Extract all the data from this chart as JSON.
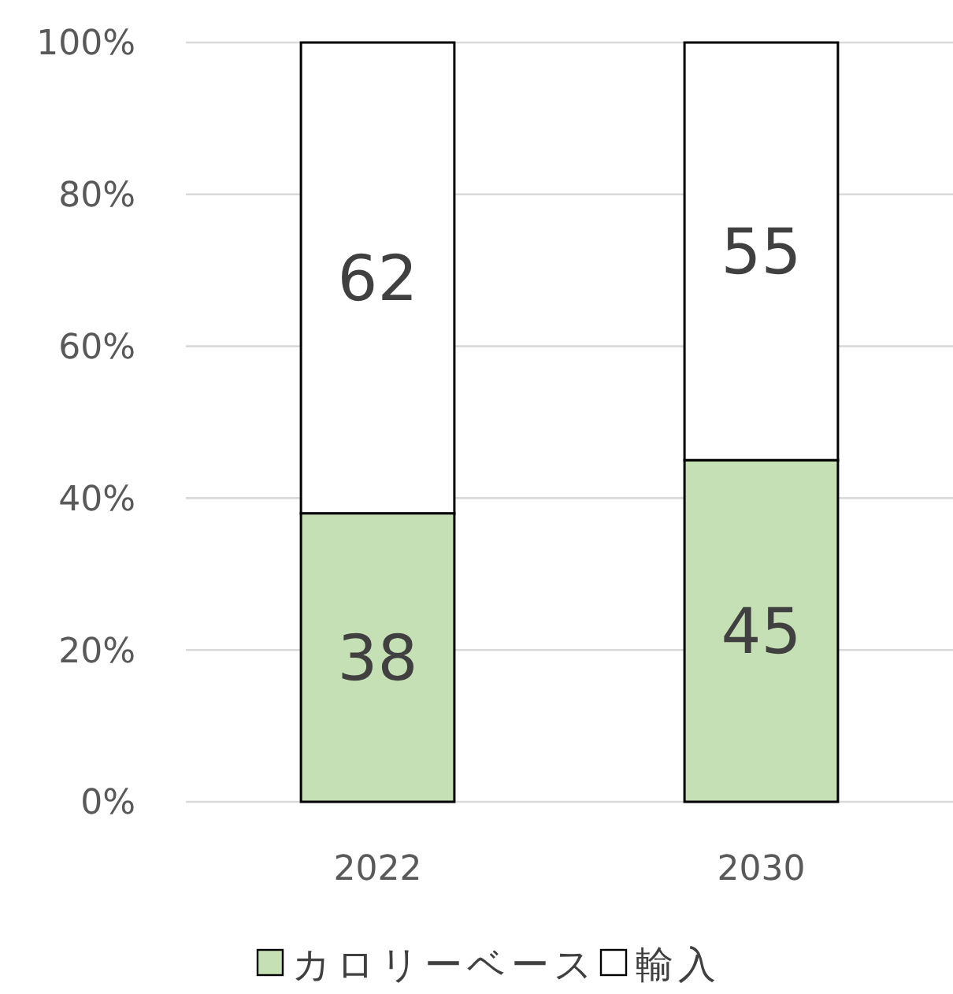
{
  "chart_data": {
    "type": "bar",
    "stacked": true,
    "categories": [
      "2022",
      "2030"
    ],
    "series": [
      {
        "name": "カロリーベース",
        "color": "#c5e0b4",
        "values": [
          38,
          45
        ]
      },
      {
        "name": "輸入",
        "color": "#ffffff",
        "values": [
          62,
          55
        ]
      }
    ],
    "ylim": [
      0,
      100
    ],
    "yticks": [
      {
        "value": 0,
        "label": "0%"
      },
      {
        "value": 20,
        "label": "20%"
      },
      {
        "value": 40,
        "label": "40%"
      },
      {
        "value": 60,
        "label": "60%"
      },
      {
        "value": 80,
        "label": "80%"
      },
      {
        "value": 100,
        "label": "100%"
      }
    ],
    "grid": "y",
    "legend": "bottom",
    "data_labels": true
  }
}
